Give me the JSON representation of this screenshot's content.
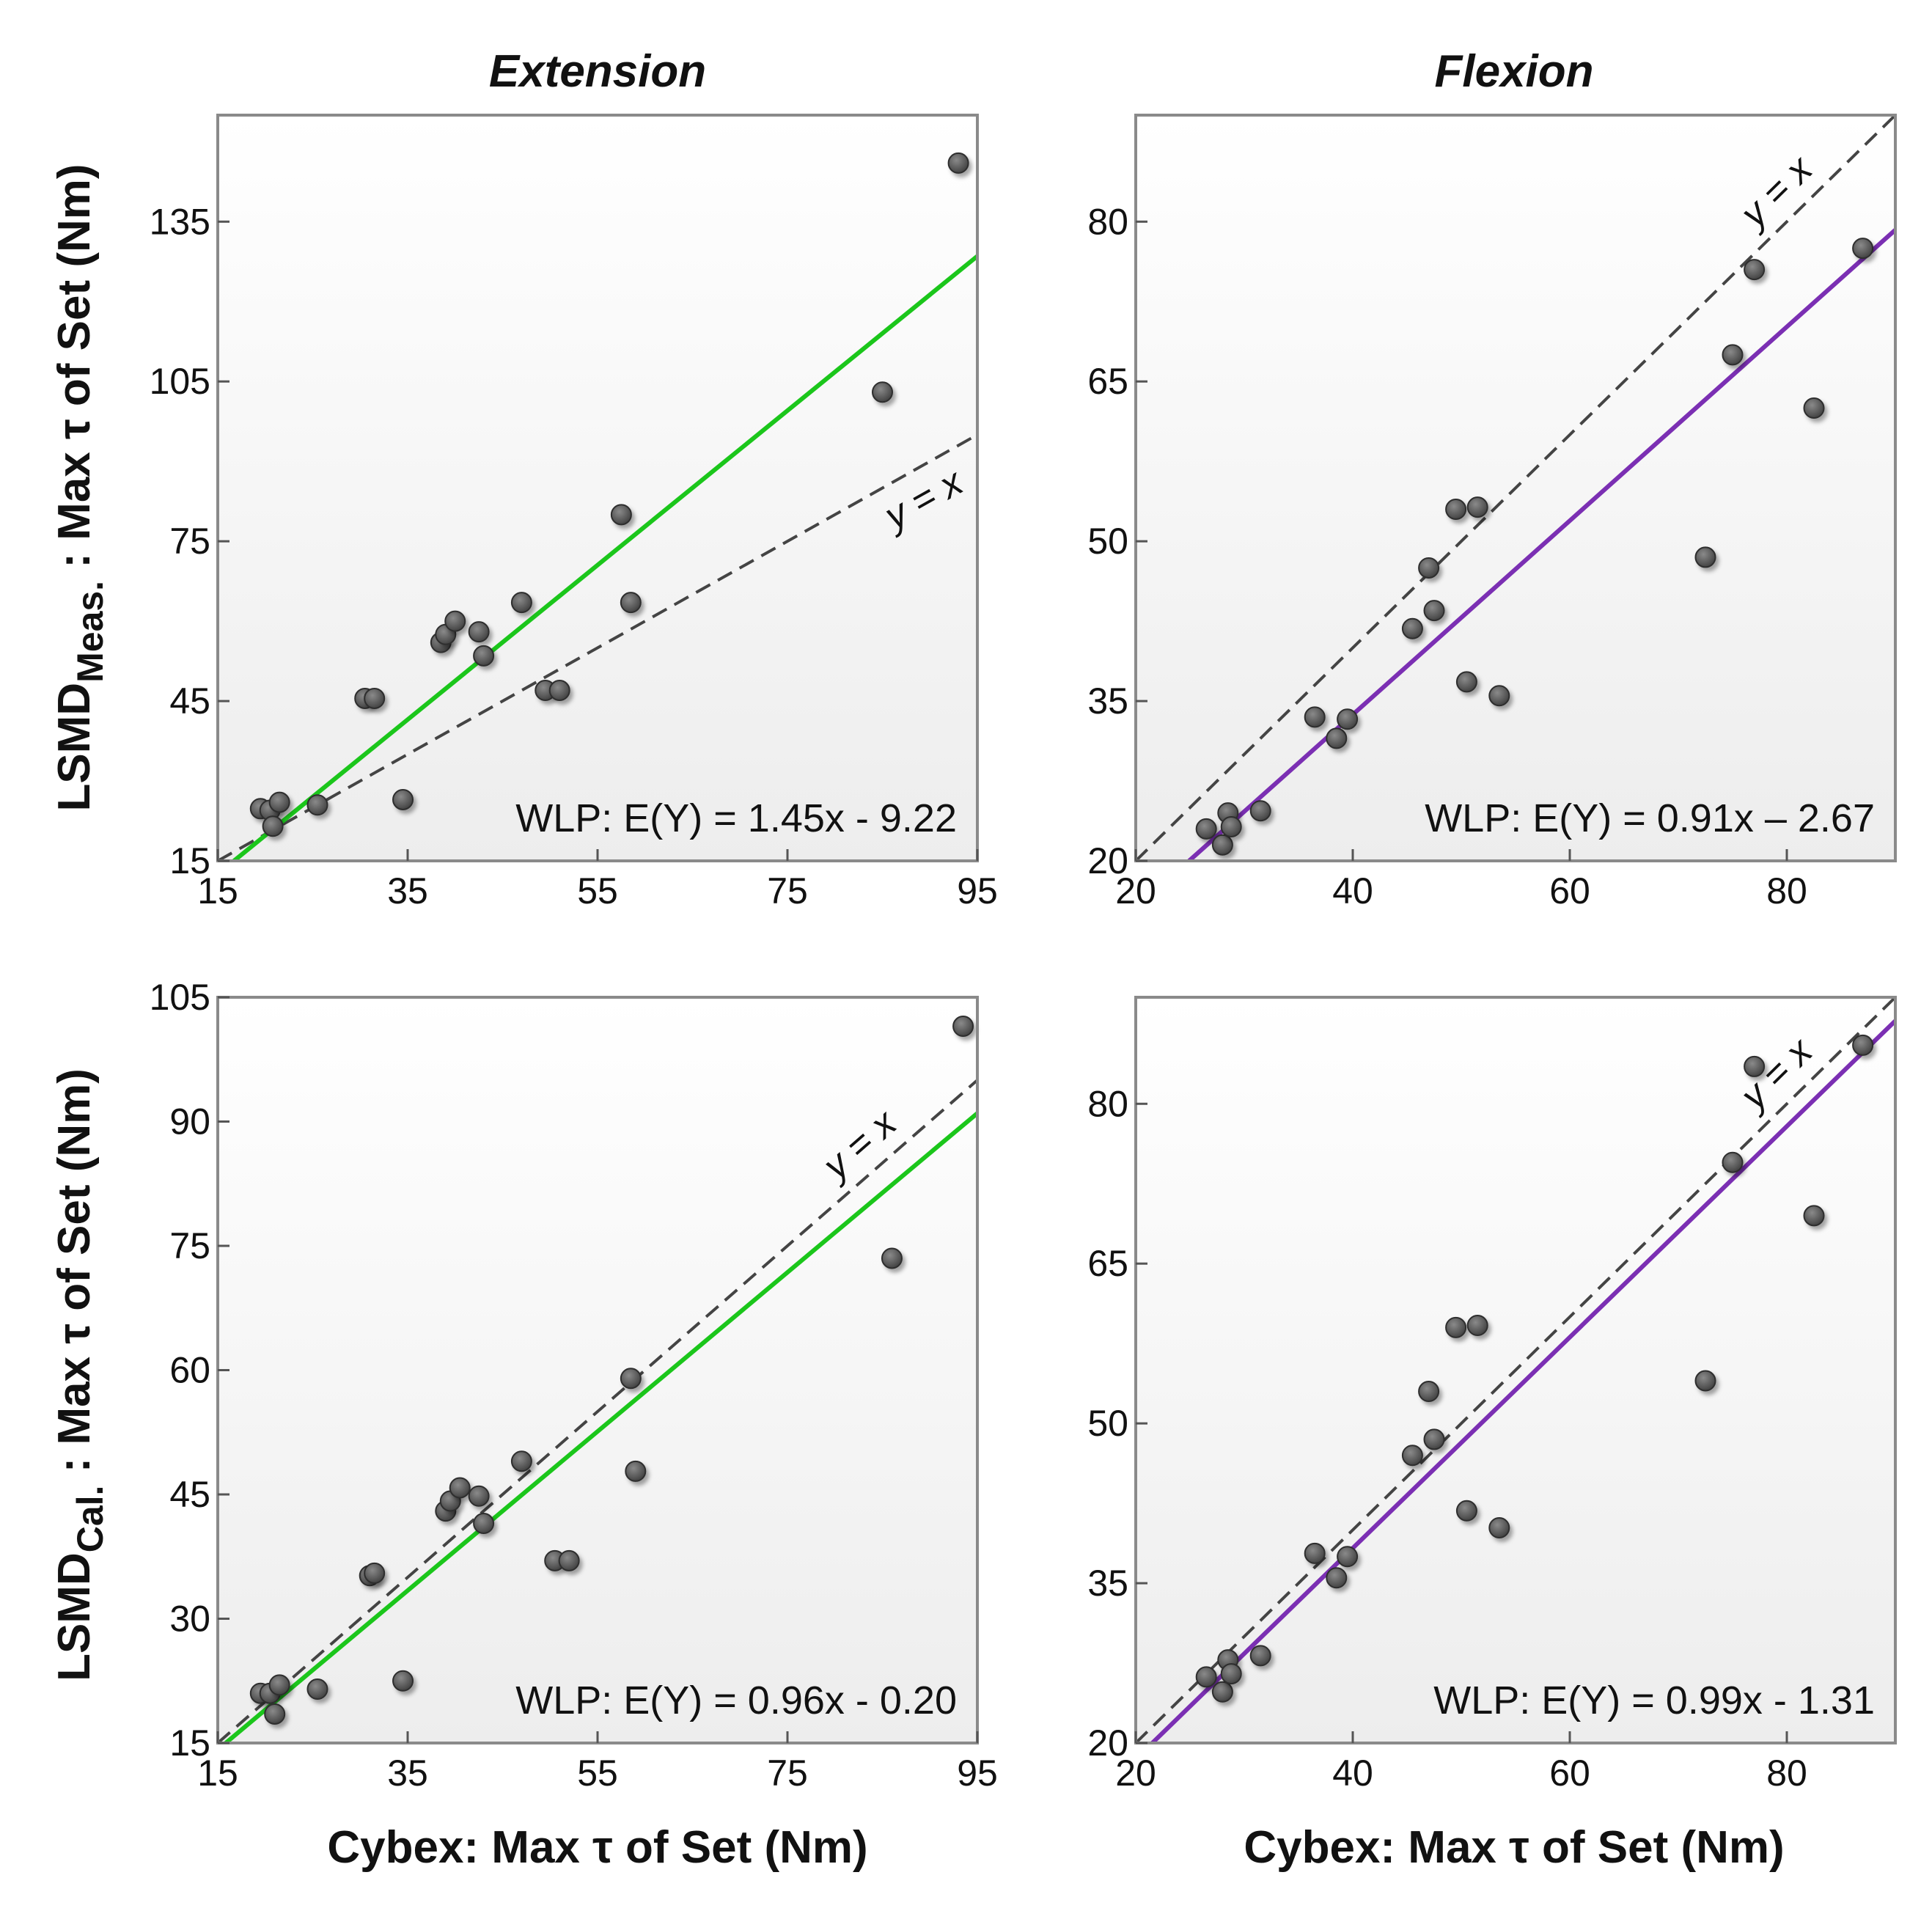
{
  "figure": {
    "col_titles": [
      "Extension",
      "Flexion"
    ],
    "xlabel": "Cybex: Max τ of Set (Nm)",
    "ylabel_top": "LSMD<sub>Meas.</sub> : Max τ of Set (Nm)",
    "ylabel_top_main": "LSMD",
    "ylabel_top_sub": "Meas.",
    "ylabel_top_rest": " : Max τ of Set (Nm)",
    "ylabel_bottom_main": "LSMD",
    "ylabel_bottom_sub": "Cal.",
    "ylabel_bottom_rest": " : Max τ of Set (Nm)",
    "identity_label": "y = x"
  },
  "chart_data": [
    {
      "type": "scatter",
      "id": "extension-measured",
      "title": "Extension",
      "xlabel": "Cybex: Max τ of Set (Nm)",
      "ylabel": "LSMD Meas. : Max τ of Set (Nm)",
      "xlim": [
        15,
        95
      ],
      "ylim": [
        15,
        155
      ],
      "xticks": [
        15,
        35,
        55,
        75,
        95
      ],
      "yticks": [
        15,
        45,
        75,
        105,
        135
      ],
      "points": [
        [
          19.5,
          24.8
        ],
        [
          20.5,
          24.5
        ],
        [
          20.8,
          21.5
        ],
        [
          21.5,
          26
        ],
        [
          25.5,
          25.5
        ],
        [
          30.5,
          45.5
        ],
        [
          31.5,
          45.5
        ],
        [
          34.5,
          26.5
        ],
        [
          38.5,
          56
        ],
        [
          39,
          57.5
        ],
        [
          40,
          60
        ],
        [
          42.5,
          58
        ],
        [
          43,
          53.5
        ],
        [
          47,
          63.5
        ],
        [
          49.5,
          47
        ],
        [
          51,
          47
        ],
        [
          57.5,
          80
        ],
        [
          58.5,
          63.5
        ],
        [
          85,
          103
        ],
        [
          93,
          146
        ]
      ],
      "fit": {
        "slope": 1.45,
        "intercept": -9.22,
        "label": "WLP: E(Y) = 1.45x - 9.22",
        "color": "#1bc61b"
      },
      "identity": {
        "label": "y = x"
      },
      "grid": false
    },
    {
      "type": "scatter",
      "id": "flexion-measured",
      "title": "Flexion",
      "xlabel": "Cybex: Max τ of Set (Nm)",
      "ylabel": "LSMD Meas. : Max τ of Set (Nm)",
      "xlim": [
        20,
        90
      ],
      "ylim": [
        20,
        90
      ],
      "xticks": [
        20,
        40,
        60,
        80
      ],
      "yticks": [
        20,
        35,
        50,
        65,
        80
      ],
      "points": [
        [
          26.5,
          23
        ],
        [
          28,
          21.5
        ],
        [
          28.5,
          24.5
        ],
        [
          28.8,
          23.2
        ],
        [
          31.5,
          24.7
        ],
        [
          36.5,
          33.5
        ],
        [
          38.5,
          31.5
        ],
        [
          39.5,
          33.3
        ],
        [
          45.5,
          41.8
        ],
        [
          47,
          47.5
        ],
        [
          47.5,
          43.5
        ],
        [
          49.5,
          53
        ],
        [
          50.5,
          36.8
        ],
        [
          51.5,
          53.2
        ],
        [
          53.5,
          35.5
        ],
        [
          72.5,
          48.5
        ],
        [
          75,
          67.5
        ],
        [
          77,
          75.5
        ],
        [
          82.5,
          62.5
        ],
        [
          87,
          77.5
        ]
      ],
      "fit": {
        "slope": 0.91,
        "intercept": -2.67,
        "label": "WLP: E(Y) = 0.91x – 2.67",
        "color": "#7b2fb3"
      },
      "identity": {
        "label": "y = x"
      },
      "grid": false
    },
    {
      "type": "scatter",
      "id": "extension-calibrated",
      "title": "",
      "xlabel": "Cybex: Max τ of Set (Nm)",
      "ylabel": "LSMD Cal. : Max τ of Set (Nm)",
      "xlim": [
        15,
        95
      ],
      "ylim": [
        15,
        105
      ],
      "xticks": [
        15,
        35,
        55,
        75,
        95
      ],
      "yticks": [
        15,
        30,
        45,
        60,
        75,
        90,
        105
      ],
      "points": [
        [
          19.5,
          21
        ],
        [
          20.5,
          21
        ],
        [
          21,
          18.5
        ],
        [
          21.5,
          22
        ],
        [
          25.5,
          21.5
        ],
        [
          31,
          35.2
        ],
        [
          31.5,
          35.5
        ],
        [
          34.5,
          22.5
        ],
        [
          39,
          43
        ],
        [
          39.5,
          44.2
        ],
        [
          40.5,
          45.8
        ],
        [
          42.5,
          44.8
        ],
        [
          43,
          41.5
        ],
        [
          47,
          49
        ],
        [
          50.5,
          37
        ],
        [
          52,
          37
        ],
        [
          58.5,
          59
        ],
        [
          59,
          47.8
        ],
        [
          86,
          73.5
        ],
        [
          93.5,
          101.5
        ]
      ],
      "fit": {
        "slope": 0.96,
        "intercept": -0.2,
        "label": "WLP: E(Y) = 0.96x - 0.20",
        "color": "#1bc61b"
      },
      "identity": {
        "label": "y = x"
      },
      "grid": false
    },
    {
      "type": "scatter",
      "id": "flexion-calibrated",
      "title": "",
      "xlabel": "Cybex: Max τ of Set (Nm)",
      "ylabel": "LSMD Cal. : Max τ of Set (Nm)",
      "xlim": [
        20,
        90
      ],
      "ylim": [
        20,
        90
      ],
      "xticks": [
        20,
        40,
        60,
        80
      ],
      "yticks": [
        20,
        35,
        50,
        65,
        80
      ],
      "points": [
        [
          26.5,
          26.2
        ],
        [
          28,
          24.8
        ],
        [
          28.5,
          27.8
        ],
        [
          28.8,
          26.5
        ],
        [
          31.5,
          28.2
        ],
        [
          36.5,
          37.8
        ],
        [
          38.5,
          35.5
        ],
        [
          39.5,
          37.5
        ],
        [
          45.5,
          47
        ],
        [
          47,
          53
        ],
        [
          47.5,
          48.5
        ],
        [
          49.5,
          59
        ],
        [
          50.5,
          41.8
        ],
        [
          51.5,
          59.2
        ],
        [
          53.5,
          40.2
        ],
        [
          72.5,
          54
        ],
        [
          75,
          74.5
        ],
        [
          77,
          83.5
        ],
        [
          82.5,
          69.5
        ],
        [
          87,
          85.5
        ]
      ],
      "fit": {
        "slope": 0.99,
        "intercept": -1.31,
        "label": "WLP: E(Y) = 0.99x - 1.31",
        "color": "#7b2fb3"
      },
      "identity": {
        "label": "y = x"
      },
      "grid": false
    }
  ]
}
